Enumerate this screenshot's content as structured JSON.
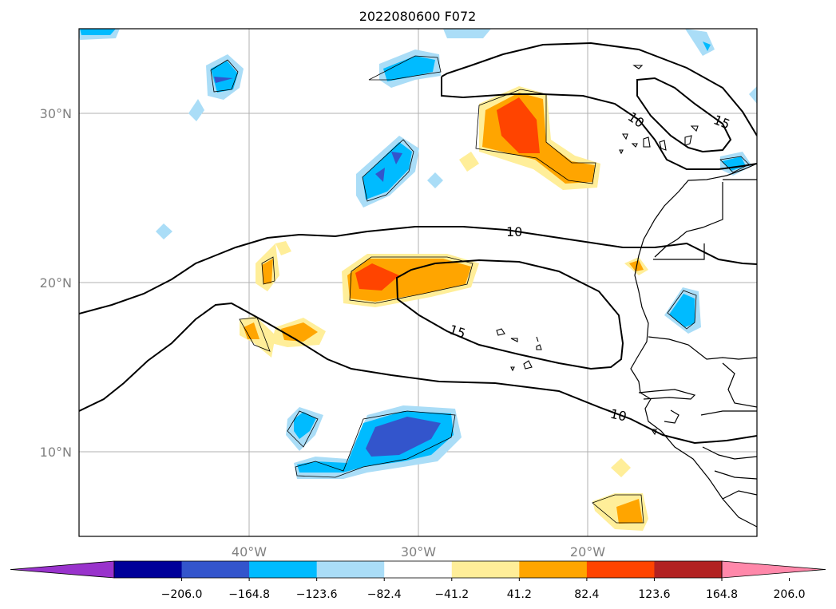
{
  "title": "2022080600 F072",
  "map": {
    "lat_labels": [
      "30°N",
      "20°N",
      "10°N"
    ],
    "lon_labels": [
      "40°W",
      "30°W",
      "20°W"
    ],
    "contour_labels": [
      "10",
      "15",
      "10",
      "15",
      "10"
    ]
  },
  "colorbar": {
    "colors": [
      "#9933cc",
      "#000099",
      "#3355cc",
      "#00bbff",
      "#aaddf7",
      "#ffffff",
      "#ffee99",
      "#ffa500",
      "#ff4400",
      "#b22222",
      "#ff88aa"
    ],
    "tick_labels": [
      "−206.0",
      "−164.8",
      "−123.6",
      "−82.4",
      "−41.2",
      "41.2",
      "82.4",
      "123.6",
      "164.8",
      "206.0"
    ]
  }
}
